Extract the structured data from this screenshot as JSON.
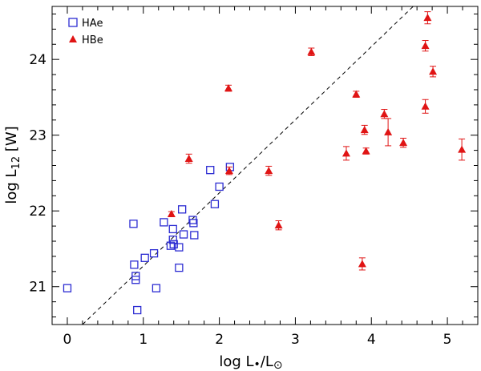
{
  "chart_data": {
    "type": "scatter",
    "xlabel": {
      "main": "log L",
      "sub1": "•",
      "mid": "/L",
      "sub2": "⊙"
    },
    "ylabel": {
      "main": "log L",
      "sub": "12",
      "unit": " [W]"
    },
    "xlim": [
      -0.2,
      5.4
    ],
    "ylim": [
      20.5,
      24.7
    ],
    "xticks": [
      0,
      1,
      2,
      3,
      4,
      5
    ],
    "yticks": [
      21,
      22,
      23,
      24
    ],
    "xtick_labels": [
      "0",
      "1",
      "2",
      "3",
      "4",
      "5"
    ],
    "ytick_labels": [
      "21",
      "22",
      "23",
      "24"
    ],
    "reference_line": {
      "style": "dashed",
      "x": [
        0.2,
        4.55
      ],
      "y": [
        20.5,
        24.7
      ]
    },
    "colors": {
      "HAe": "#2c2cd2",
      "HBe": "#e01414"
    },
    "legend": [
      {
        "name": "HAe",
        "marker": "open-square"
      },
      {
        "name": "HBe",
        "marker": "filled-triangle"
      }
    ],
    "series": [
      {
        "name": "HAe",
        "marker": "open-square",
        "points": [
          {
            "x": 0.0,
            "y": 20.98
          },
          {
            "x": 0.87,
            "y": 21.83
          },
          {
            "x": 0.88,
            "y": 21.29
          },
          {
            "x": 0.9,
            "y": 21.14
          },
          {
            "x": 0.9,
            "y": 21.09
          },
          {
            "x": 0.92,
            "y": 20.69
          },
          {
            "x": 1.02,
            "y": 21.38
          },
          {
            "x": 1.14,
            "y": 21.44
          },
          {
            "x": 1.17,
            "y": 20.98
          },
          {
            "x": 1.27,
            "y": 21.85
          },
          {
            "x": 1.36,
            "y": 21.54
          },
          {
            "x": 1.39,
            "y": 21.76
          },
          {
            "x": 1.39,
            "y": 21.62
          },
          {
            "x": 1.4,
            "y": 21.56
          },
          {
            "x": 1.47,
            "y": 21.52
          },
          {
            "x": 1.47,
            "y": 21.25
          },
          {
            "x": 1.51,
            "y": 22.02
          },
          {
            "x": 1.53,
            "y": 21.69
          },
          {
            "x": 1.65,
            "y": 21.88
          },
          {
            "x": 1.66,
            "y": 21.84
          },
          {
            "x": 1.67,
            "y": 21.68
          },
          {
            "x": 1.88,
            "y": 22.54
          },
          {
            "x": 1.94,
            "y": 22.09
          },
          {
            "x": 2.0,
            "y": 22.32
          },
          {
            "x": 2.14,
            "y": 22.58
          }
        ]
      },
      {
        "name": "HBe",
        "marker": "filled-triangle",
        "points": [
          {
            "x": 1.37,
            "y": 21.96,
            "err": 0.03
          },
          {
            "x": 1.6,
            "y": 22.69,
            "err": 0.06
          },
          {
            "x": 2.12,
            "y": 23.62,
            "err": 0.04
          },
          {
            "x": 2.13,
            "y": 22.53,
            "err": 0.05
          },
          {
            "x": 2.65,
            "y": 22.53,
            "err": 0.06
          },
          {
            "x": 2.78,
            "y": 21.81,
            "err": 0.06
          },
          {
            "x": 3.21,
            "y": 24.1,
            "err": 0.05
          },
          {
            "x": 3.67,
            "y": 22.76,
            "err": 0.09
          },
          {
            "x": 3.8,
            "y": 23.54,
            "err": 0.04
          },
          {
            "x": 3.88,
            "y": 21.3,
            "err": 0.08
          },
          {
            "x": 3.91,
            "y": 23.07,
            "err": 0.06
          },
          {
            "x": 3.93,
            "y": 22.79,
            "err": 0.04
          },
          {
            "x": 4.17,
            "y": 23.28,
            "err": 0.06
          },
          {
            "x": 4.22,
            "y": 23.04,
            "err": 0.18
          },
          {
            "x": 4.42,
            "y": 22.9,
            "err": 0.06
          },
          {
            "x": 4.71,
            "y": 23.38,
            "err": 0.09
          },
          {
            "x": 4.71,
            "y": 24.18,
            "err": 0.07
          },
          {
            "x": 4.74,
            "y": 24.55,
            "err": 0.08
          },
          {
            "x": 4.81,
            "y": 23.84,
            "err": 0.07
          },
          {
            "x": 5.19,
            "y": 22.81,
            "err": 0.14
          }
        ]
      }
    ]
  }
}
